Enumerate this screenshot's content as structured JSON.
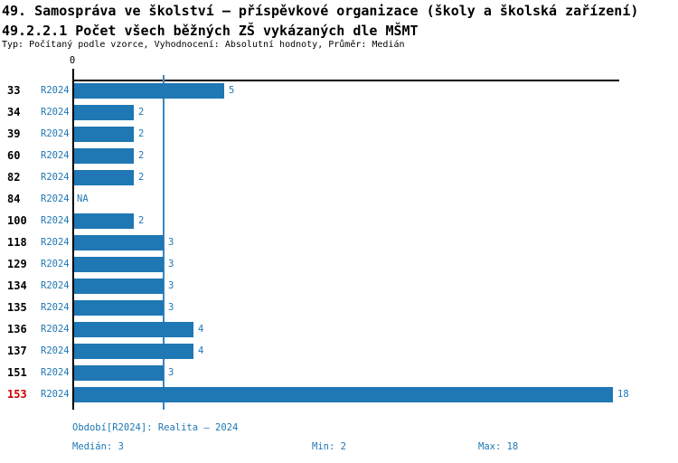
{
  "header": {
    "title": "49. Samospráva ve školství – příspěvkové organizace (školy a školská zařízení)",
    "subtitle": "49.2.2.1 Počet všech běžných ZŠ vykázaných dle MŠMT",
    "meta": "Typ: Počítaný podle vzorce, Vyhodnocení: Absolutní hodnoty, Průměr: Medián"
  },
  "chart_data": {
    "type": "bar",
    "orientation": "horizontal",
    "series_name": "R2024",
    "categories": [
      "33",
      "34",
      "39",
      "60",
      "82",
      "84",
      "100",
      "118",
      "129",
      "134",
      "135",
      "136",
      "137",
      "151",
      "153"
    ],
    "values": [
      5,
      2,
      2,
      2,
      2,
      null,
      2,
      3,
      3,
      3,
      3,
      4,
      4,
      3,
      18
    ],
    "value_labels": [
      "5",
      "2",
      "2",
      "2",
      "2",
      "NA",
      "2",
      "3",
      "3",
      "3",
      "3",
      "4",
      "4",
      "3",
      "18"
    ],
    "highlighted_category": "153",
    "x_axis_tick_label": "0",
    "xlim": [
      0,
      18.2
    ],
    "median_line_value": 3,
    "grid": false,
    "legend_position": "none"
  },
  "footer": {
    "period": "Období[R2024]: Realita – 2024",
    "median": "Medián: 3",
    "min": "Min: 2",
    "max": "Max: 18"
  },
  "colors": {
    "bar": "#1f77b4",
    "text_blue": "#1f77b4",
    "highlight": "#cc0000",
    "axis": "#000000",
    "median_line": "#3b87c2"
  }
}
